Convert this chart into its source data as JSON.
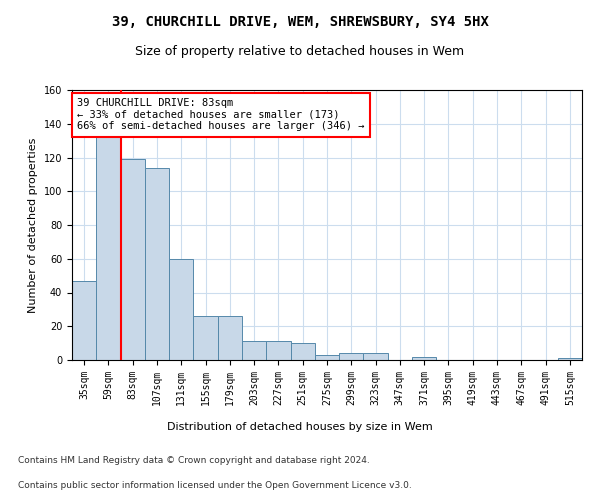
{
  "title1": "39, CHURCHILL DRIVE, WEM, SHREWSBURY, SY4 5HX",
  "title2": "Size of property relative to detached houses in Wem",
  "xlabel": "Distribution of detached houses by size in Wem",
  "ylabel": "Number of detached properties",
  "footer1": "Contains HM Land Registry data © Crown copyright and database right 2024.",
  "footer2": "Contains public sector information licensed under the Open Government Licence v3.0.",
  "categories": [
    "35sqm",
    "59sqm",
    "83sqm",
    "107sqm",
    "131sqm",
    "155sqm",
    "179sqm",
    "203sqm",
    "227sqm",
    "251sqm",
    "275sqm",
    "299sqm",
    "323sqm",
    "347sqm",
    "371sqm",
    "395sqm",
    "419sqm",
    "443sqm",
    "467sqm",
    "491sqm",
    "515sqm"
  ],
  "values": [
    47,
    133,
    119,
    114,
    60,
    26,
    26,
    11,
    11,
    10,
    3,
    4,
    4,
    0,
    2,
    0,
    0,
    0,
    0,
    0,
    1
  ],
  "bar_color": "#c8d8e8",
  "bar_edge_color": "#5588aa",
  "redline_index": 2,
  "annotation_text": "39 CHURCHILL DRIVE: 83sqm\n← 33% of detached houses are smaller (173)\n66% of semi-detached houses are larger (346) →",
  "annotation_box_color": "white",
  "annotation_box_edgecolor": "red",
  "redline_color": "red",
  "ylim": [
    0,
    160
  ],
  "yticks": [
    0,
    20,
    40,
    60,
    80,
    100,
    120,
    140,
    160
  ],
  "bg_color": "white",
  "grid_color": "#ccddee",
  "title1_fontsize": 10,
  "title2_fontsize": 9,
  "ylabel_fontsize": 8,
  "xlabel_fontsize": 8,
  "tick_fontsize": 7,
  "annotation_fontsize": 7.5,
  "footer_fontsize": 6.5
}
